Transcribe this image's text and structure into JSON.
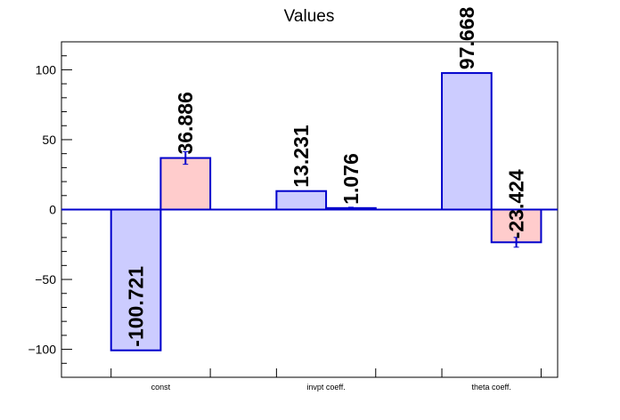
{
  "chart_data": {
    "type": "bar",
    "title": "Values",
    "categories": [
      "const",
      "invpt coeff.",
      "theta coeff."
    ],
    "ylim": [
      -120,
      120
    ],
    "yticks": [
      -100,
      -50,
      0,
      50,
      100
    ],
    "grid": false,
    "series": [
      {
        "values": [
          -100.721,
          13.231,
          97.668
        ],
        "labels": [
          "-100.721",
          "13.231",
          "97.668"
        ],
        "errors": [
          0,
          0,
          0
        ],
        "fill": "#ccccff",
        "stroke": "#0000cc"
      },
      {
        "values": [
          36.886,
          1.076,
          -23.424
        ],
        "labels": [
          "36.886",
          "1.076",
          "-23.424"
        ],
        "errors": [
          4.5,
          0.6,
          3.5
        ],
        "fill": "#ffcccc",
        "stroke": "#0000cc"
      }
    ]
  }
}
